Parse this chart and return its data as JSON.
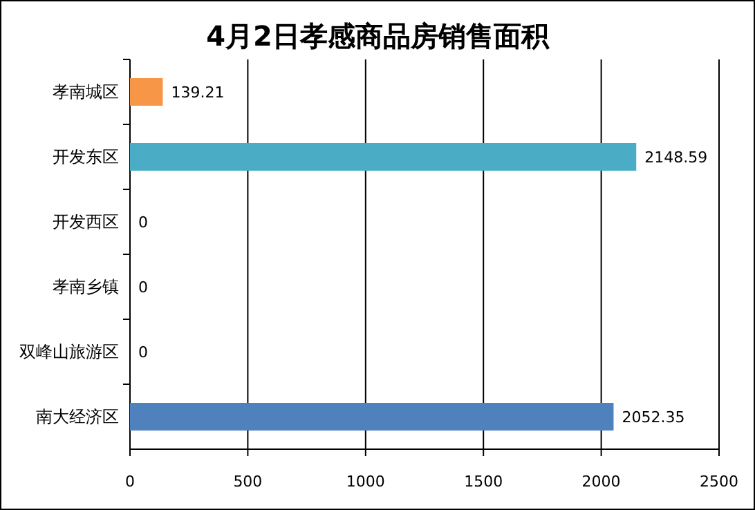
{
  "chart_data": {
    "type": "bar",
    "orientation": "horizontal",
    "title": "4月2日孝感商品房销售面积",
    "categories": [
      "孝南城区",
      "开发东区",
      "开发西区",
      "孝南乡镇",
      "双峰山旅游区",
      "南大经济区"
    ],
    "values": [
      139.21,
      2148.59,
      0,
      0,
      0,
      2052.35
    ],
    "colors": [
      "#f79646",
      "#4bacc6",
      "#4bacc6",
      "#4bacc6",
      "#4bacc6",
      "#4f81bd"
    ],
    "xlim": [
      0,
      2500
    ],
    "xticks": [
      0,
      500,
      1000,
      1500,
      2000,
      2500
    ],
    "grid": "x",
    "data_labels": true
  }
}
